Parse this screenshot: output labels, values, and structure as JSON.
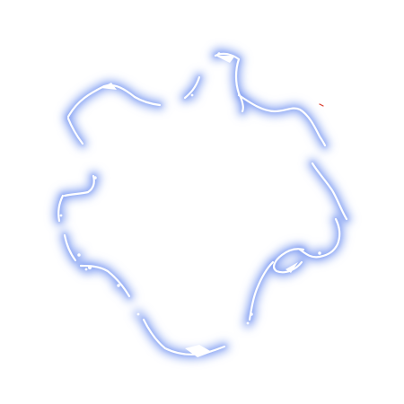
{
  "canvas": {
    "background": "#ffffff"
  },
  "glow": {
    "color": "#7f9cf2",
    "core_color": "#ffffff",
    "accent_color": "#d93a2b"
  },
  "shape": {
    "name": "glowing-outline"
  }
}
